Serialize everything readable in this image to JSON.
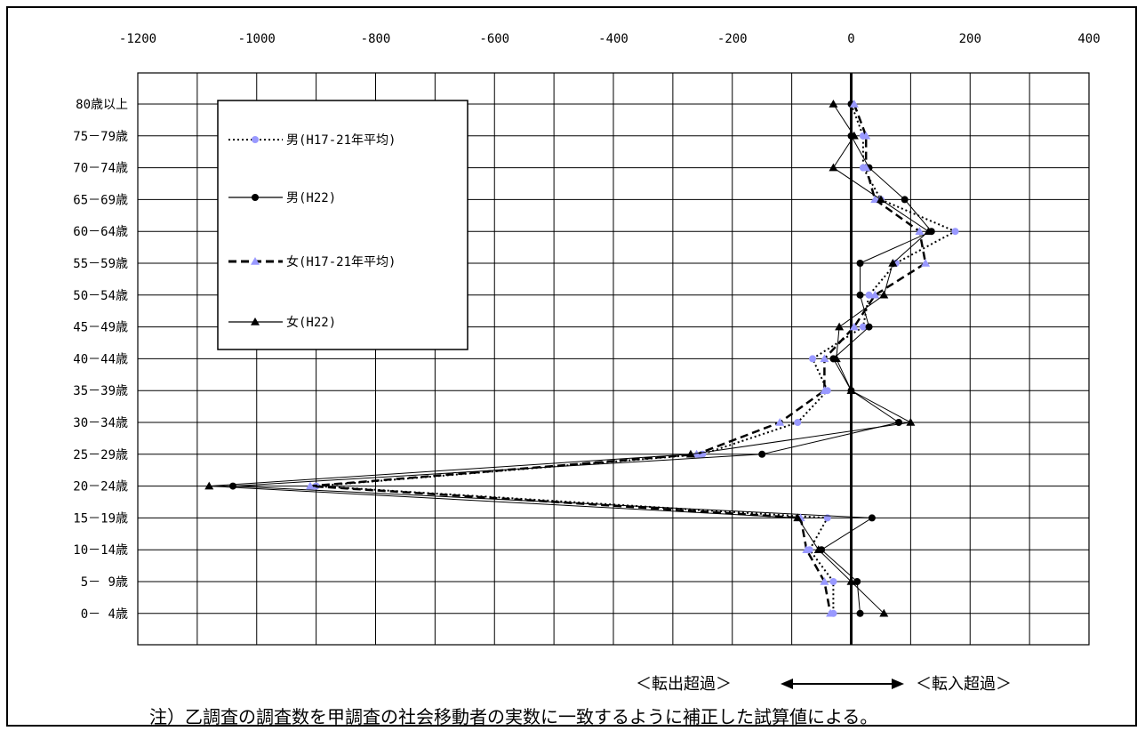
{
  "chart_data": {
    "type": "line",
    "orientation": "horizontal",
    "xlim": [
      -1200,
      400
    ],
    "x_ticks": [
      "-1200",
      "-1000",
      "-800",
      "-600",
      "-400",
      "-200",
      "0",
      "200",
      "400"
    ],
    "x_tick_values": [
      -1200,
      -1000,
      -800,
      -600,
      -400,
      -200,
      0,
      200,
      400
    ],
    "categories": [
      "80歳以上",
      "75－79歳",
      "70－74歳",
      "65－69歳",
      "60－64歳",
      "55－59歳",
      "50－54歳",
      "45－49歳",
      "40－44歳",
      "35－39歳",
      "30－34歳",
      "25－29歳",
      "20－24歳",
      "15－19歳",
      "10－14歳",
      "5－ 9歳",
      "0－ 4歳"
    ],
    "grid": true,
    "legend_position": "top-left",
    "series": [
      {
        "name": "男(H17-21年平均)",
        "style": "dotted",
        "marker": "circle",
        "color": "#9999ff",
        "values": [
          0,
          20,
          20,
          50,
          175,
          75,
          30,
          20,
          -65,
          -40,
          -90,
          -250,
          -900,
          -40,
          -70,
          -30,
          -30
        ]
      },
      {
        "name": "男(H22)",
        "style": "solid",
        "marker": "circle",
        "color": "#000000",
        "values": [
          0,
          0,
          30,
          90,
          135,
          15,
          15,
          30,
          -30,
          0,
          80,
          -150,
          -1040,
          35,
          -50,
          10,
          15
        ]
      },
      {
        "name": "女(H17-21年平均)",
        "style": "dashed",
        "marker": "triangle",
        "color": "#9999ff",
        "values": [
          5,
          25,
          25,
          40,
          115,
          125,
          40,
          5,
          -45,
          -45,
          -120,
          -260,
          -910,
          -85,
          -75,
          -45,
          -35
        ]
      },
      {
        "name": "女(H22)",
        "style": "solid",
        "marker": "triangle",
        "color": "#000000",
        "values": [
          -30,
          5,
          -30,
          50,
          130,
          70,
          55,
          -20,
          -25,
          0,
          100,
          -270,
          -1080,
          -90,
          -55,
          0,
          55
        ]
      }
    ],
    "annotations": {
      "left_label": "＜転出超過＞",
      "right_label": "＜転入超過＞"
    }
  },
  "note": "注）乙調査の調査数を甲調査の社会移動者の実数に一致するように補正した試算値による。"
}
